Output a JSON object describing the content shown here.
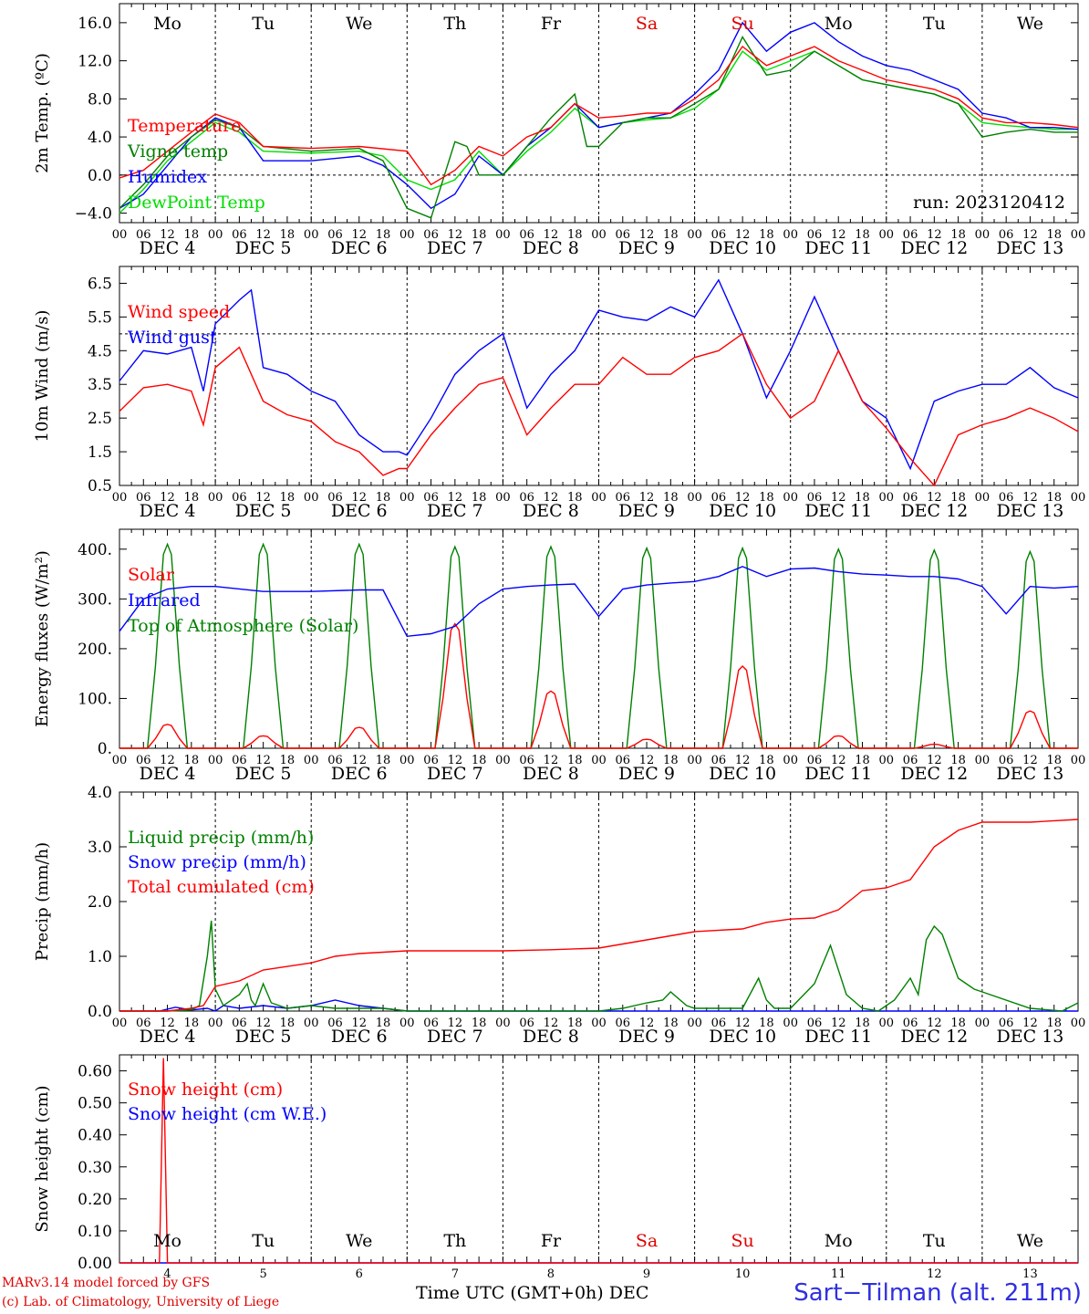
{
  "run_label": "run: 2023120412",
  "days": [
    "DEC 4",
    "DEC 5",
    "DEC 6",
    "DEC 7",
    "DEC 8",
    "DEC 9",
    "DEC 10",
    "DEC 11",
    "DEC 12",
    "DEC 13"
  ],
  "weekdays": [
    "Mo",
    "Tu",
    "We",
    "Th",
    "Fr",
    "Sa",
    "Su",
    "Mo",
    "Tu",
    "We"
  ],
  "weekday_colors": [
    "#000000",
    "#000000",
    "#000000",
    "#000000",
    "#000000",
    "#e00000",
    "#e00000",
    "#000000",
    "#000000",
    "#000000"
  ],
  "hour_ticks": [
    "00",
    "06",
    "12",
    "18"
  ],
  "last_tick": "00",
  "bottom_day_numbers": [
    "4",
    "5",
    "6",
    "7",
    "8",
    "9",
    "10",
    "11",
    "12",
    "13"
  ],
  "bottom_axis_label": "Time UTC (GMT+0h) DEC",
  "credit_line1": "MARv3.14 model forced by GFS",
  "credit_line2": "(c) Lab. of Climatology, University of Liege",
  "station": "Sart−Tilman (alt. 211m)",
  "colors": {
    "red": "#ff0000",
    "blue": "#0000ff",
    "dark_green": "#008000",
    "light_green": "#00dd00",
    "purple": "#800080"
  },
  "chart_data": [
    {
      "type": "line",
      "ylabel": "2m Temp. (ºC)",
      "ylim": [
        -5,
        18
      ],
      "yticks": [
        -4,
        0,
        4,
        8,
        12,
        16
      ],
      "ytick_labels": [
        "−4.0",
        "0.0",
        "4.0",
        "8.0",
        "12.0",
        "16.0"
      ],
      "reference_line": 0,
      "x_unit": "hours since DEC 4 00 UTC",
      "legend": [
        "Temperature",
        "Vigne temp",
        "Humidex",
        "DewPoint Temp"
      ],
      "series": [
        {
          "name": "Temperature",
          "color": "#ff0000",
          "x": [
            0,
            6,
            12,
            18,
            24,
            30,
            36,
            48,
            60,
            72,
            78,
            84,
            90,
            96,
            102,
            108,
            114,
            120,
            126,
            132,
            138,
            144,
            150,
            156,
            162,
            168,
            174,
            180,
            186,
            192,
            198,
            204,
            210,
            216,
            222,
            228,
            234,
            240
          ],
          "y": [
            -0.3,
            0.5,
            2.5,
            4.5,
            6.4,
            5.5,
            3.0,
            2.8,
            3.0,
            2.5,
            -1.0,
            0.5,
            3.0,
            2.0,
            4.0,
            5.0,
            7.5,
            6.0,
            6.2,
            6.5,
            6.5,
            8.0,
            10.0,
            13.5,
            11.5,
            12.5,
            13.5,
            12.0,
            11.0,
            10.0,
            9.5,
            9.0,
            8.0,
            6.0,
            5.5,
            5.5,
            5.3,
            5.0
          ]
        },
        {
          "name": "Vigne temp",
          "color": "#008000",
          "x": [
            0,
            6,
            12,
            18,
            24,
            30,
            36,
            48,
            60,
            66,
            72,
            78,
            84,
            87,
            90,
            96,
            102,
            108,
            114,
            117,
            120,
            126,
            132,
            138,
            144,
            150,
            156,
            162,
            168,
            174,
            180,
            186,
            192,
            198,
            204,
            210,
            216,
            222,
            228,
            234,
            240
          ],
          "y": [
            -3.5,
            -1,
            2,
            4,
            5.8,
            5,
            3,
            2.5,
            2.8,
            1.5,
            -3.5,
            -4.5,
            3.5,
            3,
            0,
            0,
            3,
            6,
            8.5,
            3,
            3,
            5.5,
            6,
            6,
            7.5,
            9,
            14.5,
            10.5,
            11,
            13,
            11.5,
            10,
            9.5,
            9,
            8.5,
            7.5,
            4,
            4.5,
            4.8,
            4.5,
            4.5
          ]
        },
        {
          "name": "Humidex",
          "color": "#0000ff",
          "x": [
            0,
            6,
            12,
            18,
            24,
            30,
            36,
            48,
            60,
            66,
            72,
            78,
            84,
            90,
            96,
            102,
            108,
            114,
            120,
            126,
            132,
            138,
            144,
            150,
            156,
            162,
            168,
            174,
            180,
            186,
            192,
            198,
            204,
            210,
            216,
            222,
            228,
            234,
            240
          ],
          "y": [
            -3.5,
            -2,
            1,
            4,
            6,
            5,
            1.5,
            1.5,
            2,
            1,
            -1,
            -3.5,
            -2,
            2,
            0,
            3,
            5,
            7.5,
            5,
            5.5,
            6,
            6.5,
            8.5,
            11,
            16,
            13,
            15,
            16,
            14,
            12.5,
            11.5,
            11,
            10,
            9,
            6.5,
            6,
            5,
            5,
            4.8
          ]
        },
        {
          "name": "DewPoint Temp",
          "color": "#00dd00",
          "x": [
            0,
            6,
            12,
            18,
            24,
            30,
            36,
            48,
            60,
            66,
            72,
            78,
            84,
            90,
            96,
            102,
            108,
            114,
            120,
            126,
            132,
            138,
            144,
            150,
            156,
            162,
            168,
            174,
            180,
            186,
            192,
            198,
            204,
            210,
            216,
            222,
            228,
            234,
            240
          ],
          "y": [
            -4,
            -1.5,
            1.5,
            3.5,
            5.5,
            4.5,
            2.5,
            2.3,
            2.5,
            2,
            -0.5,
            -1.5,
            -0.5,
            2.5,
            0,
            2.5,
            4.5,
            7,
            5,
            5.5,
            5.8,
            6,
            7,
            9,
            13,
            11,
            12,
            13,
            11.5,
            10,
            9.5,
            9,
            8.5,
            7.5,
            5.5,
            5.2,
            5,
            4.8,
            4.8
          ]
        }
      ]
    },
    {
      "type": "line",
      "ylabel": "10m Wind (m/s)",
      "ylim": [
        0.5,
        7.0
      ],
      "yticks": [
        0.5,
        1.5,
        2.5,
        3.5,
        4.5,
        5.5,
        6.5
      ],
      "ytick_labels": [
        "0.5",
        "1.5",
        "2.5",
        "3.5",
        "4.5",
        "5.5",
        "6.5"
      ],
      "reference_line": 5,
      "x_unit": "hours since DEC 4 00 UTC",
      "legend": [
        "Wind speed",
        "Wind gust"
      ],
      "series": [
        {
          "name": "Wind speed",
          "color": "#ff0000",
          "x": [
            0,
            6,
            12,
            18,
            21,
            24,
            30,
            36,
            42,
            48,
            54,
            60,
            66,
            70,
            72,
            78,
            84,
            90,
            96,
            102,
            108,
            114,
            120,
            126,
            132,
            138,
            144,
            150,
            156,
            162,
            168,
            174,
            180,
            186,
            192,
            198,
            204,
            210,
            216,
            222,
            228,
            234,
            240
          ],
          "y": [
            2.7,
            3.4,
            3.5,
            3.3,
            2.3,
            4.0,
            4.6,
            3.0,
            2.6,
            2.4,
            1.8,
            1.5,
            0.8,
            1.0,
            1.0,
            2.0,
            2.8,
            3.5,
            3.7,
            2.0,
            2.8,
            3.5,
            3.5,
            4.3,
            3.8,
            3.8,
            4.3,
            4.5,
            5.0,
            3.5,
            2.5,
            3.0,
            4.5,
            3.0,
            2.2,
            1.3,
            0.5,
            2.0,
            2.3,
            2.5,
            2.8,
            2.5,
            2.1
          ]
        },
        {
          "name": "Wind gust",
          "color": "#0000ff",
          "x": [
            0,
            6,
            12,
            18,
            21,
            24,
            30,
            33,
            36,
            42,
            48,
            54,
            60,
            66,
            70,
            72,
            78,
            84,
            90,
            96,
            102,
            108,
            114,
            120,
            126,
            132,
            138,
            144,
            150,
            156,
            162,
            168,
            174,
            180,
            186,
            192,
            198,
            204,
            210,
            216,
            222,
            228,
            234,
            240
          ],
          "y": [
            3.6,
            4.5,
            4.4,
            4.6,
            3.3,
            5.3,
            6.0,
            6.3,
            4.0,
            3.8,
            3.3,
            3.0,
            2.0,
            1.5,
            1.5,
            1.4,
            2.5,
            3.8,
            4.5,
            5.0,
            2.8,
            3.8,
            4.5,
            5.7,
            5.5,
            5.4,
            5.8,
            5.5,
            6.6,
            5.0,
            3.1,
            4.5,
            6.1,
            4.5,
            3.0,
            2.5,
            1.0,
            3.0,
            3.3,
            3.5,
            3.5,
            4.0,
            3.4,
            3.1
          ]
        }
      ]
    },
    {
      "type": "line",
      "ylabel": "Energy fluxes (W/m²)",
      "ylim": [
        0,
        440
      ],
      "yticks": [
        0,
        100,
        200,
        300,
        400
      ],
      "ytick_labels": [
        "0.",
        "100.",
        "200.",
        "300.",
        "400."
      ],
      "x_unit": "hours since DEC 4 00 UTC",
      "legend": [
        "Solar",
        "Infrared",
        "Top of Atmosphere (Solar)"
      ],
      "series": [
        {
          "name": "Infrared",
          "color": "#0000ff",
          "x": [
            0,
            6,
            12,
            18,
            24,
            36,
            48,
            60,
            66,
            72,
            78,
            84,
            90,
            96,
            102,
            108,
            114,
            120,
            126,
            132,
            138,
            144,
            150,
            156,
            162,
            168,
            174,
            180,
            186,
            192,
            198,
            204,
            210,
            216,
            222,
            228,
            234,
            240
          ],
          "y": [
            235,
            300,
            320,
            325,
            325,
            315,
            315,
            318,
            318,
            225,
            230,
            245,
            290,
            320,
            325,
            328,
            330,
            265,
            320,
            328,
            332,
            335,
            345,
            365,
            345,
            360,
            362,
            355,
            350,
            348,
            345,
            345,
            340,
            325,
            270,
            325,
            322,
            325
          ]
        },
        {
          "name": "Solar",
          "color": "#ff0000",
          "type": "diurnal",
          "day_peaks": [
            48,
            25,
            42,
            250,
            115,
            18,
            165,
            25,
            8,
            75
          ]
        },
        {
          "name": "Top of Atmosphere (Solar)",
          "color": "#008000",
          "type": "diurnal",
          "day_peaks": [
            410,
            410,
            410,
            405,
            405,
            402,
            402,
            400,
            398,
            395
          ]
        }
      ]
    },
    {
      "type": "line",
      "ylabel": "Precip (mm/h)",
      "ylim": [
        0,
        4.0
      ],
      "yticks": [
        0,
        1,
        2,
        3,
        4
      ],
      "ytick_labels": [
        "0.0",
        "1.0",
        "2.0",
        "3.0",
        "4.0"
      ],
      "x_unit": "hours since DEC 4 00 UTC",
      "legend": [
        "Liquid precip (mm/h)",
        "Snow precip (mm/h)",
        "Total cumulated (cm)"
      ],
      "series": [
        {
          "name": "Total cumulated (cm)",
          "color": "#ff0000",
          "x": [
            0,
            12,
            18,
            21,
            24,
            30,
            36,
            48,
            54,
            60,
            72,
            84,
            96,
            108,
            120,
            132,
            144,
            156,
            162,
            168,
            174,
            180,
            186,
            192,
            198,
            204,
            210,
            216,
            228,
            240
          ],
          "y": [
            0,
            0,
            0.05,
            0.1,
            0.45,
            0.55,
            0.75,
            0.88,
            1.0,
            1.05,
            1.1,
            1.1,
            1.1,
            1.12,
            1.15,
            1.3,
            1.45,
            1.5,
            1.62,
            1.68,
            1.7,
            1.85,
            2.2,
            2.25,
            2.4,
            3.0,
            3.3,
            3.45,
            3.45,
            3.5
          ]
        },
        {
          "name": "Liquid precip (mm/h)",
          "color": "#008000",
          "x": [
            0,
            12,
            18,
            20,
            22,
            23,
            24,
            26,
            30,
            32,
            33,
            34,
            36,
            38,
            42,
            48,
            54,
            60,
            66,
            72,
            84,
            96,
            108,
            120,
            126,
            132,
            136,
            138,
            142,
            144,
            150,
            156,
            160,
            162,
            164,
            168,
            174,
            178,
            182,
            186,
            190,
            194,
            198,
            200,
            202,
            204,
            206,
            210,
            214,
            216,
            228,
            236,
            240
          ],
          "y": [
            0,
            0,
            0.02,
            0.1,
            1.0,
            1.65,
            0.4,
            0.1,
            0.3,
            0.5,
            0.2,
            0.1,
            0.5,
            0.15,
            0.05,
            0.1,
            0.05,
            0.05,
            0.05,
            0,
            0,
            0,
            0,
            0,
            0.05,
            0.15,
            0.2,
            0.35,
            0.1,
            0.05,
            0.05,
            0.05,
            0.6,
            0.2,
            0.05,
            0.05,
            0.5,
            1.2,
            0.3,
            0.05,
            0,
            0.2,
            0.6,
            0.3,
            1.3,
            1.55,
            1.4,
            0.6,
            0.4,
            0.35,
            0.05,
            0,
            0.15
          ]
        },
        {
          "name": "Snow precip (mm/h)",
          "color": "#0000ff",
          "x": [
            0,
            10,
            14,
            18,
            22,
            24,
            26,
            30,
            36,
            42,
            48,
            54,
            60,
            66,
            72,
            240
          ],
          "y": [
            0,
            0,
            0.07,
            0.02,
            0.05,
            0,
            0.1,
            0.05,
            0.1,
            0.05,
            0.1,
            0.2,
            0.1,
            0.05,
            0,
            0
          ]
        }
      ]
    },
    {
      "type": "line",
      "ylabel": "Snow height (cm)",
      "ylim": [
        0,
        0.65
      ],
      "yticks": [
        0,
        0.1,
        0.2,
        0.3,
        0.4,
        0.5,
        0.6
      ],
      "ytick_labels": [
        "0.00",
        "0.10",
        "0.20",
        "0.30",
        "0.40",
        "0.50",
        "0.60"
      ],
      "x_unit": "hours since DEC 4 00 UTC",
      "legend": [
        "Snow height (cm)",
        "Snow height (cm W.E.)"
      ],
      "series": [
        {
          "name": "Snow height (cm)",
          "color": "#ff0000",
          "x": [
            0,
            10,
            11,
            12,
            13,
            240
          ],
          "y": [
            0,
            0,
            0.64,
            0,
            0,
            0
          ]
        },
        {
          "name": "Snow height (cm W.E.)",
          "color": "#0000ff",
          "x": [
            0,
            240
          ],
          "y": [
            0,
            0
          ]
        }
      ]
    }
  ]
}
